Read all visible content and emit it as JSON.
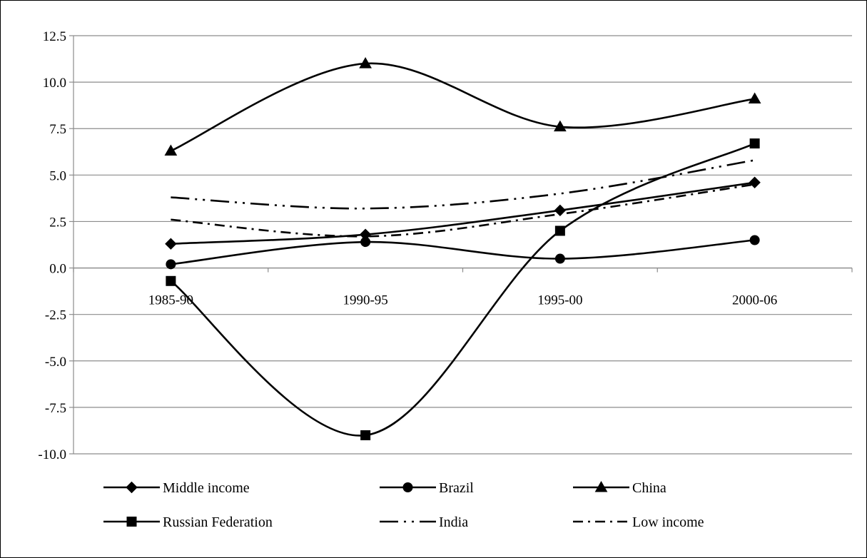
{
  "chart_data": {
    "type": "line",
    "categories": [
      "1985-90",
      "1990-95",
      "1995-00",
      "2000-06"
    ],
    "ylim": [
      -10,
      12.5
    ],
    "yticks": [
      "12.5",
      "10.0",
      "7.5",
      "5.0",
      "2.5",
      "0.0",
      "-2.5",
      "-5.0",
      "-7.5",
      "-10.0"
    ],
    "grid": true,
    "legend_position": "bottom",
    "series": [
      {
        "name": "Middle income",
        "values": [
          1.3,
          1.8,
          3.1,
          4.6
        ],
        "marker": "diamond",
        "dash": "solid"
      },
      {
        "name": "Brazil",
        "values": [
          0.2,
          1.4,
          0.5,
          1.5
        ],
        "marker": "circle",
        "dash": "solid"
      },
      {
        "name": "China",
        "values": [
          6.3,
          11.0,
          7.6,
          9.1
        ],
        "marker": "triangle",
        "dash": "solid"
      },
      {
        "name": "Russian Federation",
        "values": [
          -0.7,
          -9.0,
          2.0,
          6.7
        ],
        "marker": "square",
        "dash": "solid"
      },
      {
        "name": "India",
        "values": [
          3.8,
          3.2,
          4.0,
          5.8
        ],
        "marker": "none",
        "dash": "longdashdotdot"
      },
      {
        "name": "Low income",
        "values": [
          2.6,
          1.7,
          2.9,
          4.5
        ],
        "marker": "none",
        "dash": "dashdot"
      }
    ]
  }
}
